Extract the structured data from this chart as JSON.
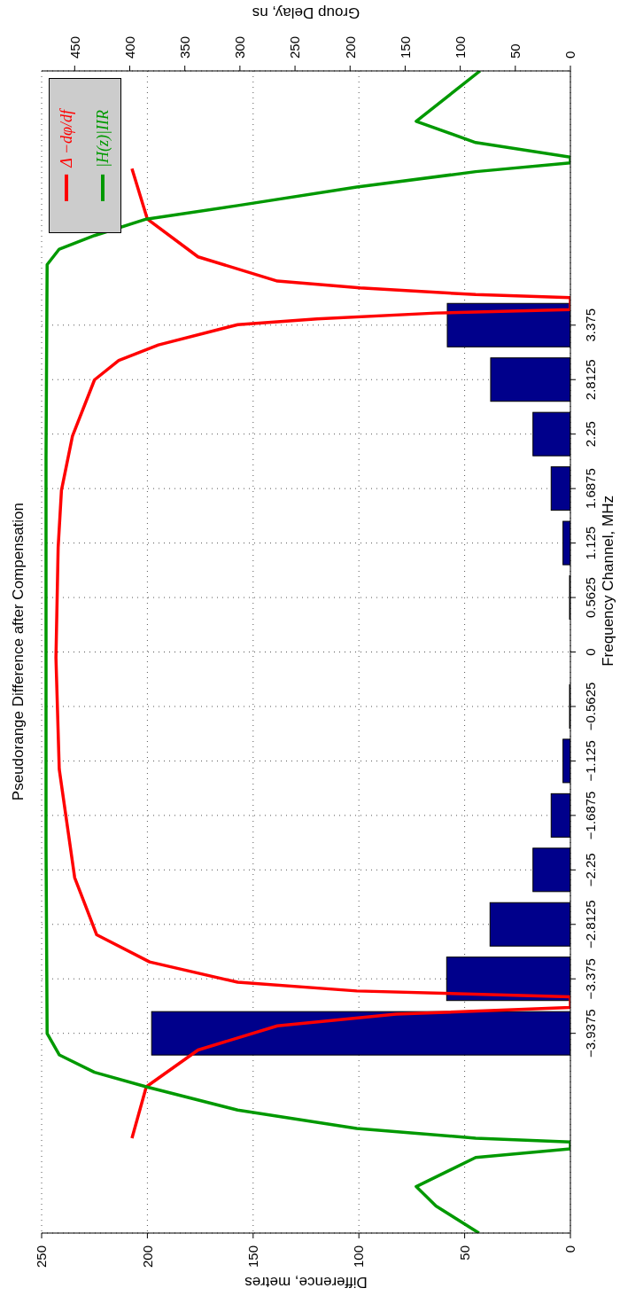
{
  "chart_data": {
    "type": "bar",
    "orientation": "horizontal",
    "title": "Pseudorange Difference after Compensation",
    "ylabel": "Frequency Channel, MHz",
    "xlabel": "Difference, metres",
    "x2label": "Group Delay, ns",
    "x": [
      -3.9375,
      -3.375,
      -2.8125,
      -2.25,
      -1.6875,
      -1.125,
      -0.5625,
      0,
      0.5625,
      1.125,
      1.6875,
      2.25,
      2.8125,
      3.375
    ],
    "series": [
      {
        "color": "#00008b",
        "values": [
          198,
          58.5,
          38,
          17.7,
          9.1,
          3.5,
          0.4,
          0,
          0.4,
          3.5,
          9.1,
          17.7,
          37.7,
          58.2
        ]
      },
      {
        "type": "line",
        "name": "Δ −dφ/df",
        "color": "#ff0000",
        "axis": "x2",
        "x": [
          -5.02,
          -4.49,
          -4.11,
          -3.86,
          -3.74,
          -3.67,
          -3.6,
          -3.56,
          -3.5,
          -3.41,
          -3.2,
          -2.92,
          -2.33,
          -1.21,
          -0.06,
          1.08,
          1.67,
          2.23,
          2.81,
          3.01,
          3.17,
          3.38,
          3.44,
          3.5,
          3.535,
          3.6,
          3.66,
          3.69,
          3.76,
          3.83,
          4.08,
          4.47,
          4.99
        ],
        "values": [
          398,
          385,
          338,
          266,
          158,
          0,
          null,
          0,
          194,
          302,
          382,
          430,
          450,
          464,
          467,
          465,
          462,
          452,
          432,
          410,
          374,
          302,
          230,
          122,
          0,
          null,
          0,
          86,
          191,
          266,
          338,
          384,
          398
        ]
      },
      {
        "type": "line",
        "name": "|H(z)|IIR",
        "color": "#009900",
        "axis": "x2",
        "x": [
          -6,
          -5.72,
          -5.52,
          -5.22,
          -5.13,
          -5.06,
          -5.02,
          -4.92,
          -4.73,
          -4.49,
          -4.34,
          -4.16,
          -3.94,
          -2,
          0,
          2,
          4,
          4.16,
          4.3,
          4.47,
          4.61,
          4.8,
          4.96,
          5.05,
          5.11,
          5.26,
          5.48,
          6
        ],
        "values": [
          83,
          122,
          140,
          86,
          0,
          0,
          86,
          194,
          302,
          385,
          432,
          464,
          475,
          476,
          476,
          476,
          475,
          464,
          432,
          385,
          302,
          194,
          86,
          0,
          0,
          86,
          140,
          82
        ]
      }
    ],
    "ylim": [
      -6,
      6
    ],
    "yticks": [
      {
        "value": -3.9375,
        "label": "−3.9375"
      },
      {
        "value": -3.375,
        "label": "−3.375"
      },
      {
        "value": -2.8125,
        "label": "−2.8125"
      },
      {
        "value": -2.25,
        "label": "−2.25"
      },
      {
        "value": -1.6875,
        "label": "−1.6875"
      },
      {
        "value": -1.125,
        "label": "−1.125"
      },
      {
        "value": -0.5625,
        "label": "−0.5625"
      },
      0,
      0.5625,
      1.125,
      1.6875,
      2.25,
      2.8125,
      3.375
    ],
    "xlim": [
      250,
      0
    ],
    "xticks": [
      0,
      50,
      100,
      150,
      200,
      250
    ],
    "x2lim": [
      480,
      0
    ],
    "x2ticks": [
      0,
      50,
      100,
      150,
      200,
      250,
      300,
      350,
      400,
      450
    ],
    "grid": true,
    "legend": "top left"
  }
}
